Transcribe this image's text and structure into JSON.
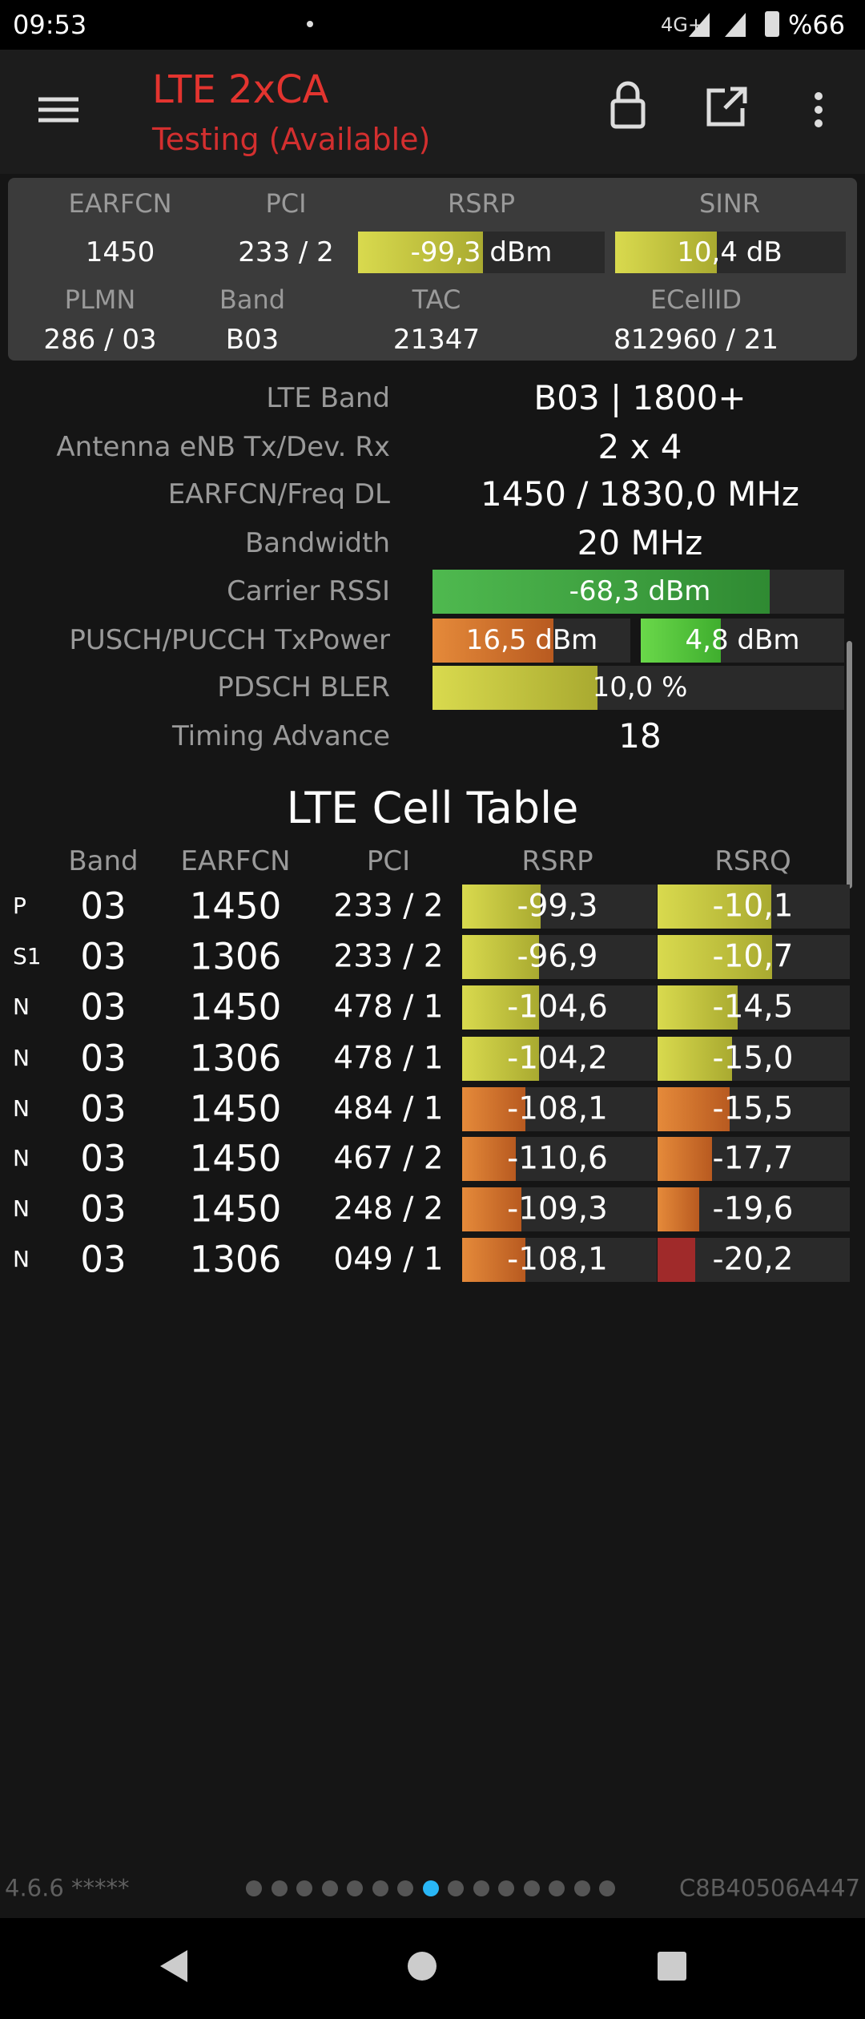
{
  "status_bar": {
    "time": "09:53",
    "network": "4G+",
    "battery": "%66"
  },
  "header": {
    "title": "LTE 2xCA",
    "subtitle": "Testing (Available)"
  },
  "summary": {
    "headers": [
      "EARFCN",
      "PCI",
      "RSRP",
      "SINR"
    ],
    "values": [
      "1450",
      "233 / 2",
      "-99,3 dBm",
      "10,4 dB"
    ],
    "headers2": [
      "PLMN",
      "Band",
      "TAC",
      "ECellID"
    ],
    "values2": [
      "286 / 03",
      "B03",
      "21347",
      "812960 / 21"
    ]
  },
  "details": {
    "rows": [
      {
        "label": "LTE Band",
        "value": "B03 | 1800+"
      },
      {
        "label": "Antenna eNB Tx/Dev. Rx",
        "value": "2 x 4"
      },
      {
        "label": "EARFCN/Freq DL",
        "value": "1450 / 1830,0 MHz"
      },
      {
        "label": "Bandwidth",
        "value": "20 MHz"
      },
      {
        "label": "Carrier RSSI",
        "value": "-68,3 dBm"
      },
      {
        "label": "PUSCH/PUCCH TxPower",
        "values": [
          "16,5 dBm",
          "4,8 dBm"
        ]
      },
      {
        "label": "PDSCH BLER",
        "value": "10,0 %"
      },
      {
        "label": "Timing Advance",
        "value": "18"
      }
    ]
  },
  "cell_table": {
    "title": "LTE Cell Table",
    "columns": [
      "Band",
      "EARFCN",
      "PCI",
      "RSRP",
      "RSRQ"
    ],
    "rows": [
      [
        "P",
        "03",
        "1450",
        "233 / 2",
        "-99,3",
        "-10,1"
      ],
      [
        "S1",
        "03",
        "1306",
        "233 / 2",
        "-96,9",
        "-10,7"
      ],
      [
        "N",
        "03",
        "1450",
        "478 / 1",
        "-104,6",
        "-14,5"
      ],
      [
        "N",
        "03",
        "1306",
        "478 / 1",
        "-104,2",
        "-15,0"
      ],
      [
        "N",
        "03",
        "1450",
        "484 / 1",
        "-108,1",
        "-15,5"
      ],
      [
        "N",
        "03",
        "1450",
        "467 / 2",
        "-110,6",
        "-17,7"
      ],
      [
        "N",
        "03",
        "1450",
        "248 / 2",
        "-109,3",
        "-19,6"
      ],
      [
        "N",
        "03",
        "1306",
        "049 / 1",
        "-108,1",
        "-20,2"
      ]
    ]
  },
  "footer": {
    "version": "4.6.6 *****",
    "device_id": "C8B40506A447"
  }
}
